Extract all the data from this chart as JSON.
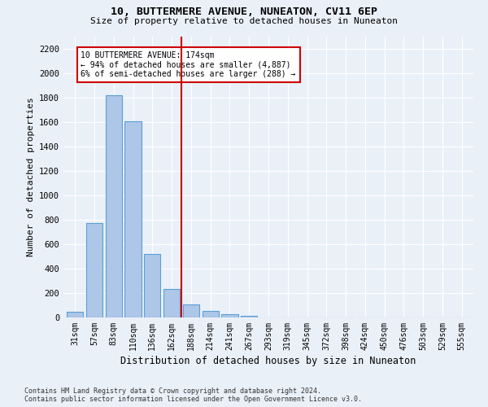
{
  "title": "10, BUTTERMERE AVENUE, NUNEATON, CV11 6EP",
  "subtitle": "Size of property relative to detached houses in Nuneaton",
  "xlabel": "Distribution of detached houses by size in Nuneaton",
  "ylabel": "Number of detached properties",
  "categories": [
    "31sqm",
    "57sqm",
    "83sqm",
    "110sqm",
    "136sqm",
    "162sqm",
    "188sqm",
    "214sqm",
    "241sqm",
    "267sqm",
    "293sqm",
    "319sqm",
    "345sqm",
    "372sqm",
    "398sqm",
    "424sqm",
    "450sqm",
    "476sqm",
    "503sqm",
    "529sqm",
    "555sqm"
  ],
  "values": [
    50,
    775,
    1820,
    1610,
    520,
    235,
    107,
    55,
    30,
    12,
    0,
    0,
    0,
    0,
    0,
    0,
    0,
    0,
    0,
    0,
    0
  ],
  "bar_color": "#aec6e8",
  "bar_edge_color": "#5a9fd4",
  "vline_color": "#cc0000",
  "vline_x": 5.5,
  "annotation_text": "10 BUTTERMERE AVENUE: 174sqm\n← 94% of detached houses are smaller (4,887)\n6% of semi-detached houses are larger (288) →",
  "annotation_box_color": "#cc0000",
  "ylim": [
    0,
    2300
  ],
  "yticks": [
    0,
    200,
    400,
    600,
    800,
    1000,
    1200,
    1400,
    1600,
    1800,
    2000,
    2200
  ],
  "footnote": "Contains HM Land Registry data © Crown copyright and database right 2024.\nContains public sector information licensed under the Open Government Licence v3.0.",
  "bg_color": "#eaf0f8",
  "plot_bg_color": "#eaf0f8"
}
